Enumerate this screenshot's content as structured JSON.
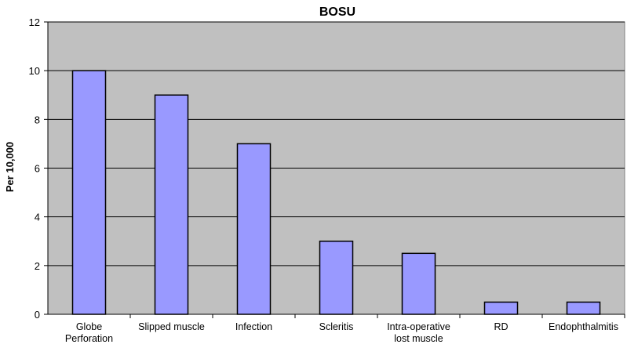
{
  "chart_data": {
    "type": "bar",
    "title": "BOSU",
    "xlabel": "",
    "ylabel": "Per 10,000",
    "ylim": [
      0,
      12
    ],
    "yticks": [
      0,
      2,
      4,
      6,
      8,
      10,
      12
    ],
    "grid": true,
    "legend": "none",
    "categories": [
      [
        "Globe",
        "Perforation"
      ],
      [
        "Slipped muscle"
      ],
      [
        "Infection"
      ],
      [
        "Scleritis"
      ],
      [
        "Intra-operative",
        "lost muscle"
      ],
      [
        "RD"
      ],
      [
        "Endophthalmitis"
      ]
    ],
    "values": [
      10,
      9,
      7,
      3,
      2.5,
      0.5,
      0.5
    ],
    "colors": {
      "bar_fill": "#9999ff",
      "bar_stroke": "#000000",
      "plot_background": "#c0c0c0",
      "gridline": "#000000"
    }
  }
}
